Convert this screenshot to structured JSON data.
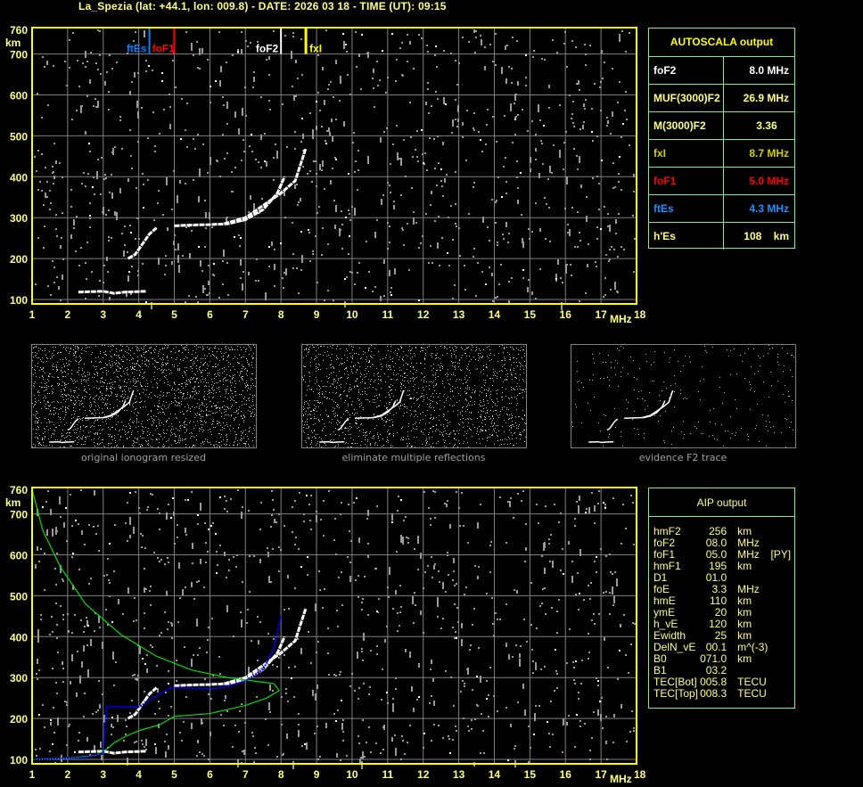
{
  "title": "La_Spezia (lat: +44.1, lon: 009.8) - DATE: 2026 03 18 - TIME (UT): 09:15",
  "colors": {
    "axis": "#ffff00",
    "panel_border": "#7cf08c",
    "grid": "#808080",
    "foF2": "#ffffff",
    "fxI": "#ffff00",
    "foF1": "#ff0000",
    "ftEs": "#0080ff",
    "profile": "#00e000",
    "fit": "#0000ff"
  },
  "autoscala": {
    "header": "AUTOSCALA output",
    "rows": [
      {
        "key": "foF2",
        "value": "8.0 MHz",
        "color": "#ffffff"
      },
      {
        "key": "MUF(3000)F2",
        "value": "26.9 MHz",
        "color": "#ffff80"
      },
      {
        "key": "M(3000)F2",
        "value": "3.36    ",
        "color": "#ffff80"
      },
      {
        "key": "fxI",
        "value": "8.7 MHz",
        "color": "#d0d000"
      },
      {
        "key": "foF1",
        "value": "5.0 MHz",
        "color": "#ff0000"
      },
      {
        "key": "ftEs",
        "value": "4.3 MHz",
        "color": "#1e90ff"
      },
      {
        "key": "h'Es",
        "value": "108    km",
        "color": "#ffff80"
      }
    ]
  },
  "aip": {
    "header": "AIP output",
    "rows": [
      [
        "hmF2",
        "256",
        "km",
        ""
      ],
      [
        "foF2",
        "08.0",
        "MHz",
        ""
      ],
      [
        "foF1",
        "05.0",
        "MHz",
        "[PY]"
      ],
      [
        "hmF1",
        "195",
        "km",
        ""
      ],
      [
        "D1",
        "01.0",
        "",
        ""
      ],
      [
        "foE",
        "3.3",
        "MHz",
        ""
      ],
      [
        "hmE",
        "110",
        "km",
        ""
      ],
      [
        "ymE",
        "20",
        "km",
        ""
      ],
      [
        "h_vE",
        "120",
        "km",
        ""
      ],
      [
        "Ewidth",
        "25",
        "km",
        ""
      ],
      [
        "DelN_vE",
        "00.1",
        "m^(-3)",
        ""
      ],
      [
        "B0",
        "071.0",
        "km",
        ""
      ],
      [
        "B1",
        "03.2",
        "",
        ""
      ],
      [
        "TEC[Bot]",
        "005.8",
        "TECU",
        ""
      ],
      [
        "TEC[Top]",
        "008.3",
        "TECU",
        ""
      ]
    ]
  },
  "thumbnails": [
    {
      "caption": "original ionogram resized"
    },
    {
      "caption": "eliminate multiple reflections"
    },
    {
      "caption": "evidence F2 trace"
    }
  ],
  "chart_data": [
    {
      "type": "scatter",
      "title": "",
      "xlabel": "MHz",
      "ylabel": "km",
      "xlim": [
        1,
        18
      ],
      "ylim": [
        100,
        760
      ],
      "x_ticks": [
        "1",
        "2",
        "3",
        "4",
        "5",
        "6",
        "7",
        "8",
        "9",
        "10",
        "11",
        "12",
        "13",
        "14",
        "15",
        "16",
        "17",
        "18"
      ],
      "y_ticks": [
        "760",
        "700",
        "600",
        "500",
        "400",
        "300",
        "200",
        "100"
      ],
      "grid": true,
      "markers": [
        {
          "name": "ftEs",
          "freq": 4.3,
          "color": "#0080ff"
        },
        {
          "name": "foF1",
          "freq": 5.0,
          "color": "#ff0000"
        },
        {
          "name": "foF2",
          "freq": 8.0,
          "color": "#ffffff"
        },
        {
          "name": "fxI",
          "freq": 8.7,
          "color": "#ffff00"
        }
      ],
      "echo_traces": [
        [
          [
            2.3,
            118
          ],
          [
            3.0,
            120
          ],
          [
            3.3,
            115
          ],
          [
            3.6,
            118
          ],
          [
            4.2,
            120
          ]
        ],
        [
          [
            3.7,
            200
          ],
          [
            3.9,
            210
          ],
          [
            4.1,
            235
          ],
          [
            4.3,
            260
          ],
          [
            4.5,
            275
          ]
        ],
        [
          [
            5.0,
            280
          ],
          [
            5.5,
            282
          ],
          [
            6.0,
            283
          ],
          [
            6.5,
            285
          ],
          [
            7.0,
            295
          ],
          [
            7.5,
            320
          ],
          [
            7.9,
            360
          ],
          [
            8.1,
            400
          ]
        ],
        [
          [
            6.4,
            285
          ],
          [
            7.0,
            300
          ],
          [
            7.5,
            330
          ],
          [
            8.0,
            360
          ],
          [
            8.4,
            390
          ],
          [
            8.7,
            470
          ]
        ]
      ]
    },
    {
      "type": "line",
      "title": "",
      "xlabel": "MHz",
      "ylabel": "km",
      "xlim": [
        1,
        18
      ],
      "ylim": [
        100,
        760
      ],
      "x_ticks": [
        "1",
        "2",
        "3",
        "4",
        "5",
        "6",
        "7",
        "8",
        "9",
        "10",
        "11",
        "12",
        "13",
        "14",
        "15",
        "16",
        "17",
        "18"
      ],
      "y_ticks": [
        "760",
        "700",
        "600",
        "500",
        "400",
        "300",
        "200",
        "100"
      ],
      "grid": true,
      "series": [
        {
          "color": "#00e000",
          "points": [
            [
              1,
              100
            ],
            [
              2,
              103
            ],
            [
              2.8,
              110
            ],
            [
              3.1,
              125
            ],
            [
              3.3,
              140
            ],
            [
              3.6,
              155
            ],
            [
              4.0,
              170
            ],
            [
              4.6,
              185
            ],
            [
              5.0,
              205
            ],
            [
              6.0,
              212
            ],
            [
              7.0,
              232
            ],
            [
              7.6,
              250
            ],
            [
              7.95,
              268
            ],
            [
              7.8,
              285
            ],
            [
              7.2,
              292
            ],
            [
              6.5,
              300
            ],
            [
              5.5,
              318
            ],
            [
              4.5,
              352
            ],
            [
              3.5,
              405
            ],
            [
              2.5,
              480
            ],
            [
              1.8,
              570
            ],
            [
              1.3,
              660
            ],
            [
              1.0,
              760
            ]
          ]
        },
        {
          "color": "#0000ff",
          "points": [
            [
              1,
              100
            ],
            [
              2.5,
              105
            ],
            [
              3.0,
              115
            ],
            [
              3.1,
              230
            ],
            [
              3.5,
              228
            ],
            [
              4.0,
              228
            ],
            [
              4.5,
              255
            ],
            [
              4.9,
              275
            ],
            [
              5.3,
              275
            ],
            [
              6.0,
              272
            ],
            [
              6.5,
              278
            ],
            [
              7.0,
              292
            ],
            [
              7.5,
              320
            ],
            [
              7.8,
              370
            ],
            [
              8.0,
              450
            ]
          ]
        }
      ],
      "echo_traces": [
        [
          [
            2.3,
            118
          ],
          [
            3.0,
            120
          ],
          [
            3.3,
            115
          ],
          [
            3.6,
            118
          ],
          [
            4.2,
            120
          ]
        ],
        [
          [
            3.7,
            200
          ],
          [
            3.9,
            210
          ],
          [
            4.1,
            235
          ],
          [
            4.3,
            260
          ],
          [
            4.5,
            275
          ]
        ],
        [
          [
            5.0,
            280
          ],
          [
            5.5,
            282
          ],
          [
            6.0,
            283
          ],
          [
            6.5,
            285
          ],
          [
            7.0,
            295
          ],
          [
            7.5,
            320
          ],
          [
            7.9,
            360
          ],
          [
            8.1,
            400
          ]
        ],
        [
          [
            6.4,
            285
          ],
          [
            7.0,
            300
          ],
          [
            7.5,
            330
          ],
          [
            8.0,
            360
          ],
          [
            8.4,
            390
          ],
          [
            8.7,
            470
          ]
        ]
      ]
    }
  ]
}
